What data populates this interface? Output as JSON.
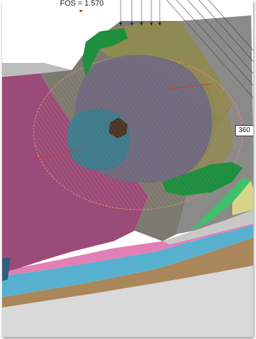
{
  "analysis": {
    "fos_text": "FOS = 1.570",
    "dimension_label": "360"
  },
  "colors": {
    "background": "#ffffff",
    "slope_gray": "#7b7b6f",
    "olive_layer": "#8f8a52",
    "magenta_layer": "#9b4b78",
    "pink_layer": "#e27fb4",
    "cyan_layer": "#58b0cf",
    "tan_layer": "#a9875a",
    "green_layer": "#1d8f3f",
    "light_green_layer": "#3fc06a",
    "yellow_layer": "#d8d58a",
    "ground_gray": "#d9d9d9",
    "slip_surface": "#e88a7a",
    "stress_zone_dark": "#6f6a7e",
    "stress_zone_teal": "#3d7c8c",
    "core_brown": "#4b3526"
  }
}
